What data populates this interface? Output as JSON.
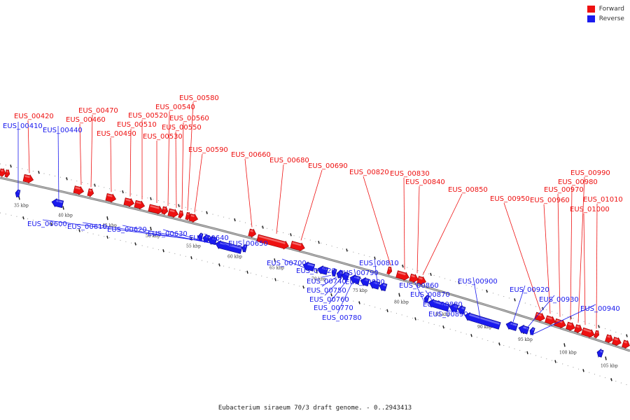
{
  "legend": {
    "forward_label": "Forward",
    "reverse_label": "Reverse",
    "forward_color": "#ee1111",
    "reverse_color": "#1a1aee"
  },
  "caption": "Eubacterium siraeum 70/3 draft genome. - 0..2943413",
  "ticks": [
    "35 kbp",
    "40 kbp",
    "45 kbp",
    "50 kbp",
    "55 kbp",
    "60 kbp",
    "65 kbp",
    "70 kbp",
    "75 kbp",
    "80 kbp",
    "85 kbp",
    "90 kbp",
    "95 kbp",
    "100 kbp",
    "105 kbp"
  ],
  "forward_genes": [
    "EUS_00420",
    "EUS_00460",
    "EUS_00470",
    "EUS_00490",
    "EUS_00510",
    "EUS_00520",
    "EUS_00530",
    "EUS_00540",
    "EUS_00550",
    "EUS_00560",
    "EUS_00580",
    "EUS_00590",
    "EUS_00660",
    "EUS_00680",
    "EUS_00690",
    "EUS_00820",
    "EUS_00830",
    "EUS_00840",
    "EUS_00850",
    "EUS_00950",
    "EUS_00960",
    "EUS_00970",
    "EUS_00980",
    "EUS_00990",
    "EUS_01000",
    "EUS_01010"
  ],
  "reverse_genes": [
    "EUS_00410",
    "EUS_00440",
    "EUS_00600",
    "EUS_00610",
    "EUS_00620",
    "EUS_00630",
    "EUS_00640",
    "EUS_00650",
    "EUS_00700",
    "EUS_00720",
    "EUS_00740",
    "EUS_00750",
    "EUS_00760",
    "EUS_00770",
    "EUS_00780",
    "EUS_00790",
    "EUS_00800",
    "EUS_00810",
    "EUS_00860",
    "EUS_00870",
    "EUS_00880",
    "EUS_00890",
    "EUS_00900",
    "EUS_00920",
    "EUS_00930",
    "EUS_00940"
  ]
}
